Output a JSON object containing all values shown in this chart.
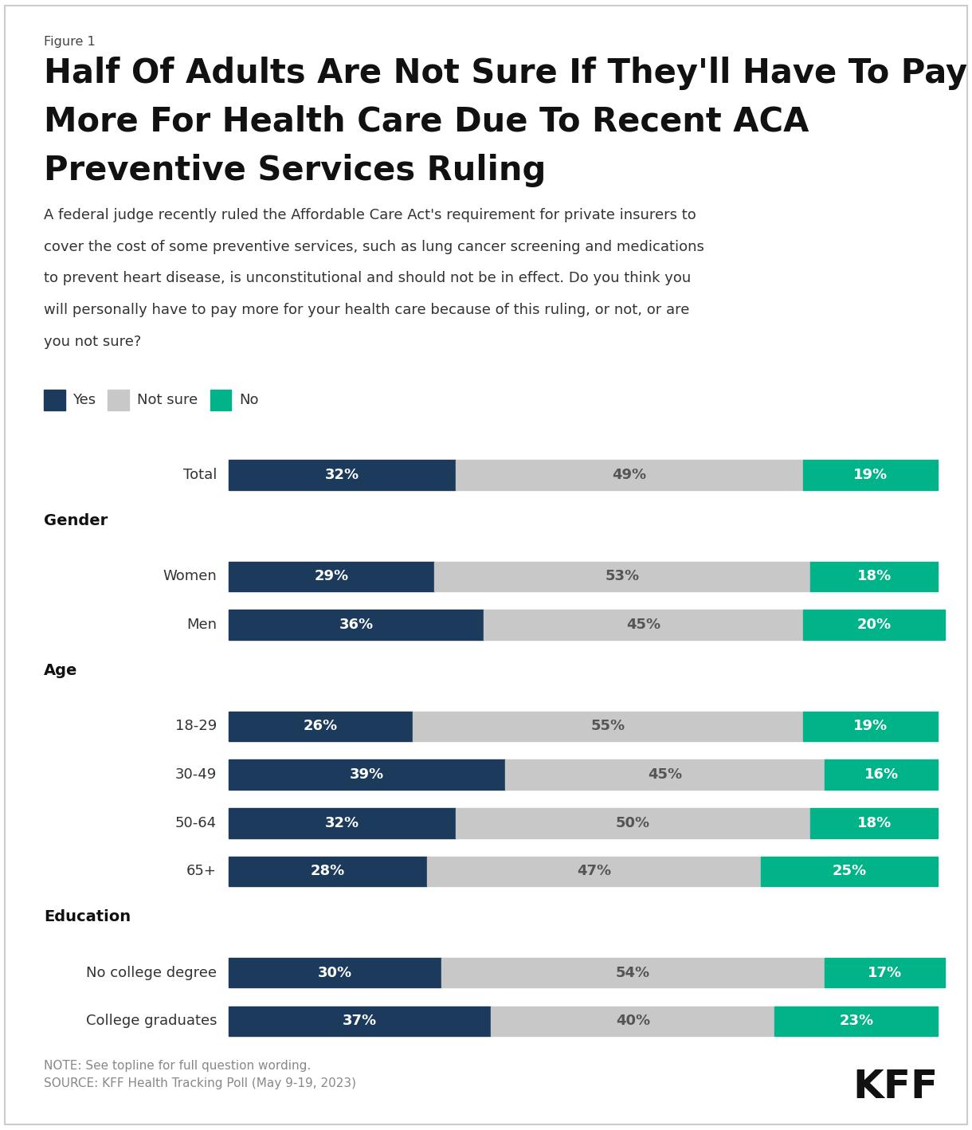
{
  "figure_label": "Figure 1",
  "title": "Half Of Adults Are Not Sure If They'll Have To Pay\nMore For Health Care Due To Recent ACA\nPreventive Services Ruling",
  "subtitle": "A federal judge recently ruled the Affordable Care Act's requirement for private insurers to cover the cost of some preventive services, such as lung cancer screening and medications to prevent heart disease, is unconstitutional and should not be in effect. Do you think you will personally have to pay more for your health care because of this ruling, or not, or are you not sure?",
  "categories": [
    "Total",
    "Gender",
    "Women",
    "Men",
    "Age",
    "18-29",
    "30-49",
    "50-64",
    "65+",
    "Education",
    "No college degree",
    "College graduates"
  ],
  "is_header": [
    false,
    true,
    false,
    false,
    true,
    false,
    false,
    false,
    false,
    true,
    false,
    false
  ],
  "yes_values": [
    32,
    null,
    29,
    36,
    null,
    26,
    39,
    32,
    28,
    null,
    30,
    37
  ],
  "not_sure_values": [
    49,
    null,
    53,
    45,
    null,
    55,
    45,
    50,
    47,
    null,
    54,
    40
  ],
  "no_values": [
    19,
    null,
    18,
    20,
    null,
    19,
    16,
    18,
    25,
    null,
    17,
    23
  ],
  "yes_color": "#1b3a5c",
  "not_sure_color": "#c8c8c8",
  "no_color": "#00b388",
  "bar_text_color_yes": "#ffffff",
  "bar_text_color_not_sure": "#555555",
  "bar_text_color_no": "#ffffff",
  "note_text": "NOTE: See topline for full question wording.\nSOURCE: KFF Health Tracking Poll (May 9-19, 2023)",
  "background_color": "#ffffff",
  "title_fontsize": 30,
  "subtitle_fontsize": 13,
  "label_fontsize": 13,
  "bar_label_fontsize": 13,
  "header_fontsize": 14
}
